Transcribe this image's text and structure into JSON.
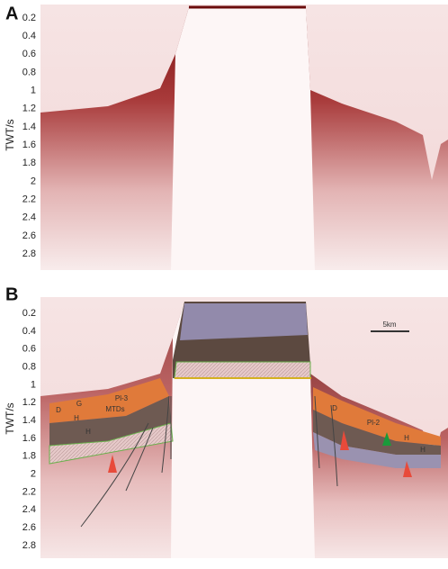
{
  "panels": [
    {
      "label": "A",
      "y_axis_label": "TWT/s",
      "yticks": [
        0.2,
        0.4,
        0.6,
        0.8,
        1.0,
        1.2,
        1.4,
        1.6,
        1.8,
        2.0,
        2.2,
        2.4,
        2.6,
        2.8
      ]
    },
    {
      "label": "B",
      "y_axis_label": "TWT/s",
      "yticks": [
        0.2,
        0.4,
        0.6,
        0.8,
        1.0,
        1.2,
        1.4,
        1.6,
        1.8,
        2.0,
        2.2,
        2.4,
        2.6,
        2.8
      ],
      "unit_labels": [
        "G",
        "Pl-3",
        "MTDs",
        "H",
        "D",
        "H",
        "D",
        "Pl-2",
        "H",
        "H"
      ],
      "scale_bar": "5km"
    }
  ]
}
